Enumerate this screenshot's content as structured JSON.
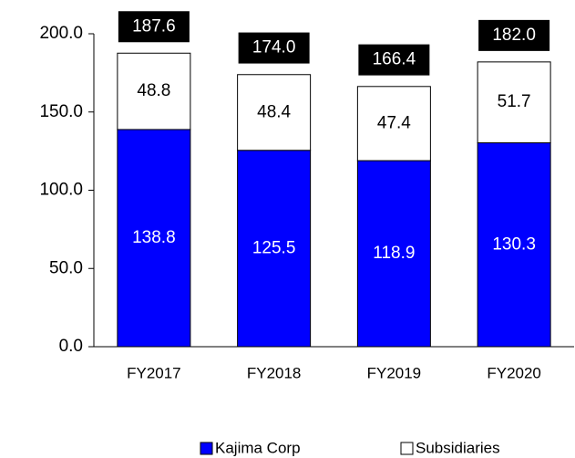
{
  "chart_data": {
    "type": "stacked-bar",
    "categories": [
      "FY2017",
      "FY2018",
      "FY2019",
      "FY2020"
    ],
    "series": [
      {
        "name": "Kajima Corp",
        "color": "#0000ff",
        "values": [
          138.8,
          125.5,
          118.9,
          130.3
        ]
      },
      {
        "name": "Subsidiaries",
        "color": "#ffffff",
        "values": [
          48.8,
          48.4,
          47.4,
          51.7
        ]
      }
    ],
    "totals": [
      187.6,
      174.0,
      166.4,
      182.0
    ],
    "total_labels": [
      "187.6",
      "174.0",
      "166.4",
      "182.0"
    ],
    "ylim": [
      0,
      200
    ],
    "yticks": [
      {
        "value": 0,
        "label": "0.0"
      },
      {
        "value": 50,
        "label": "50.0"
      },
      {
        "value": 100,
        "label": "100.0"
      },
      {
        "value": 150,
        "label": "150.0"
      },
      {
        "value": 200,
        "label": "200.0"
      }
    ],
    "legend": "bottom"
  }
}
